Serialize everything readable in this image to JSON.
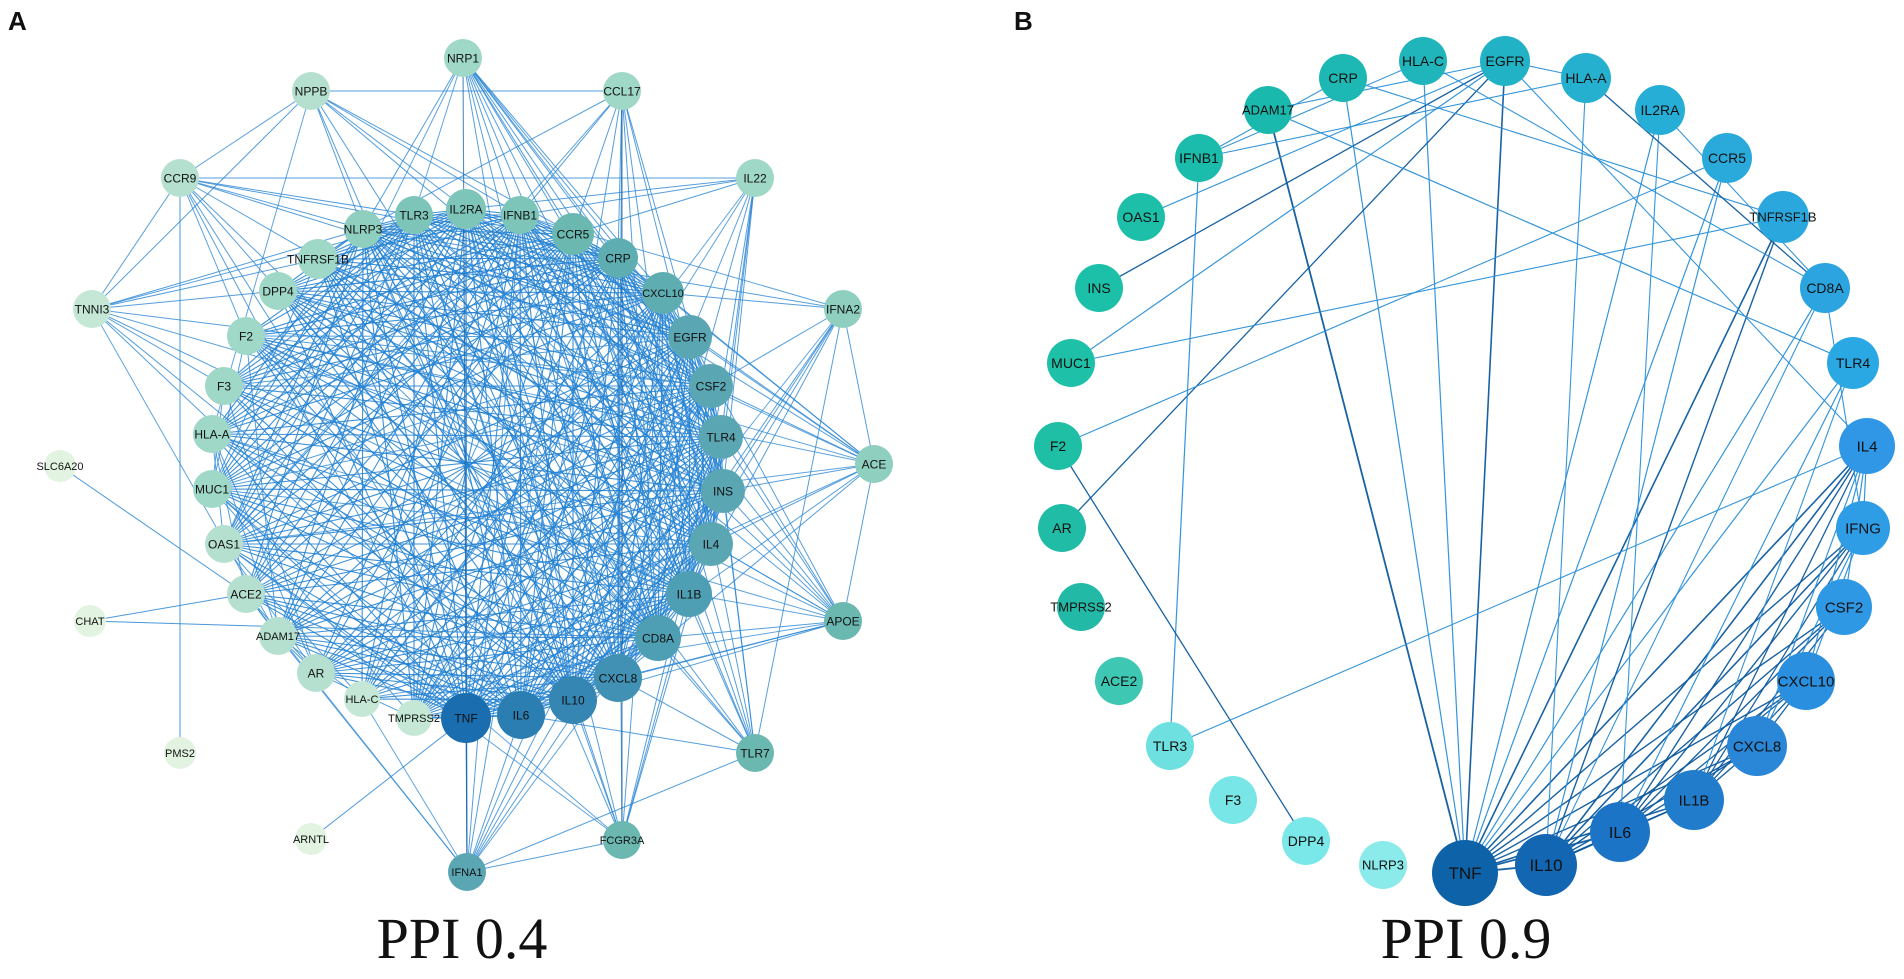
{
  "panels": [
    {
      "letter": "A",
      "caption": "PPI 0.4",
      "nodes": [
        {
          "label": "NRP1",
          "color": "#9fd8c7"
        },
        {
          "label": "NPPB",
          "color": "#b5e0cf"
        },
        {
          "label": "CCL17",
          "color": "#9fd8c7"
        },
        {
          "label": "CCR9",
          "color": "#b5e0cf"
        },
        {
          "label": "IL22",
          "color": "#9fd8c7"
        },
        {
          "label": "TLR3",
          "color": "#7cc5b8"
        },
        {
          "label": "IL2RA",
          "color": "#7cc5b8"
        },
        {
          "label": "IFNB1",
          "color": "#7cc5b8"
        },
        {
          "label": "NLRP3",
          "color": "#8fcfbf"
        },
        {
          "label": "CCR5",
          "color": "#6ab8b0"
        },
        {
          "label": "TNFRSF1B",
          "color": "#9fd8c7"
        },
        {
          "label": "CRP",
          "color": "#5eadb0"
        },
        {
          "label": "DPP4",
          "color": "#9fd8c7"
        },
        {
          "label": "CXCL10",
          "color": "#5eadb0"
        },
        {
          "label": "TNNI3",
          "color": "#c5e8d6"
        },
        {
          "label": "IFNA2",
          "color": "#8fcfbf"
        },
        {
          "label": "F2",
          "color": "#9fd8c7"
        },
        {
          "label": "EGFR",
          "color": "#5aa6b3"
        },
        {
          "label": "F3",
          "color": "#9fd8c7"
        },
        {
          "label": "CSF2",
          "color": "#5aa6b3"
        },
        {
          "label": "HLA-A",
          "color": "#9fd8c7"
        },
        {
          "label": "TLR4",
          "color": "#5aa6b3"
        },
        {
          "label": "ACE",
          "color": "#8fcfbf"
        },
        {
          "label": "SLC6A20",
          "color": "#e2f3e1"
        },
        {
          "label": "MUC1",
          "color": "#9fd8c7"
        },
        {
          "label": "INS",
          "color": "#5aa6b3"
        },
        {
          "label": "OAS1",
          "color": "#b5e0cf"
        },
        {
          "label": "IL4",
          "color": "#5aa6b3"
        },
        {
          "label": "ACE2",
          "color": "#b5e0cf"
        },
        {
          "label": "IL1B",
          "color": "#4f9fb4"
        },
        {
          "label": "CHAT",
          "color": "#e2f3e1"
        },
        {
          "label": "APOE",
          "color": "#6ab8b0"
        },
        {
          "label": "ADAM17",
          "color": "#b5e0cf"
        },
        {
          "label": "CD8A",
          "color": "#4f9fb4"
        },
        {
          "label": "AR",
          "color": "#b5e0cf"
        },
        {
          "label": "CXCL8",
          "color": "#4191b4"
        },
        {
          "label": "HLA-C",
          "color": "#c5e8d6"
        },
        {
          "label": "TMPRSS2",
          "color": "#c5e8d6"
        },
        {
          "label": "TNF",
          "color": "#1a6eb0"
        },
        {
          "label": "IL6",
          "color": "#2a7eb2"
        },
        {
          "label": "IL10",
          "color": "#3586b3"
        },
        {
          "label": "TLR7",
          "color": "#6ab8b0"
        },
        {
          "label": "PMS2",
          "color": "#e2f3e1"
        },
        {
          "label": "ARNTL",
          "color": "#e2f3e1"
        },
        {
          "label": "IFNA1",
          "color": "#5aa6b3"
        },
        {
          "label": "FCGR3A",
          "color": "#6ab8b0"
        }
      ]
    },
    {
      "letter": "B",
      "caption": "PPI 0.9",
      "nodes": [
        {
          "label": "EGFR",
          "color": "#22b2c6"
        },
        {
          "label": "HLA-C",
          "color": "#1fb5bb"
        },
        {
          "label": "HLA-A",
          "color": "#25b0cf"
        },
        {
          "label": "CRP",
          "color": "#1db8b3"
        },
        {
          "label": "ADAM17",
          "color": "#1ab9ad"
        },
        {
          "label": "IL2RA",
          "color": "#27aed6"
        },
        {
          "label": "IFNB1",
          "color": "#1bbcab"
        },
        {
          "label": "CCR5",
          "color": "#2aaadb"
        },
        {
          "label": "OAS1",
          "color": "#1dbfa9"
        },
        {
          "label": "TNFRSF1B",
          "color": "#2aa7dd"
        },
        {
          "label": "INS",
          "color": "#1cbfa8"
        },
        {
          "label": "CD8A",
          "color": "#2ca4e0"
        },
        {
          "label": "MUC1",
          "color": "#1ec1a8"
        },
        {
          "label": "TLR4",
          "color": "#2aa8e3"
        },
        {
          "label": "F2",
          "color": "#1fbfa6"
        },
        {
          "label": "IL4",
          "color": "#2f97e6"
        },
        {
          "label": "AR",
          "color": "#20bca6"
        },
        {
          "label": "IFNG",
          "color": "#2f9ce6"
        },
        {
          "label": "TMPRSS2",
          "color": "#22b9a7"
        },
        {
          "label": "CSF2",
          "color": "#2e98e5"
        },
        {
          "label": "ACE2",
          "color": "#3ec7b2"
        },
        {
          "label": "CXCL10",
          "color": "#2b8fdf"
        },
        {
          "label": "TLR3",
          "color": "#6ee0e0"
        },
        {
          "label": "CXCL8",
          "color": "#2a86d7"
        },
        {
          "label": "F3",
          "color": "#78e6e6"
        },
        {
          "label": "IL1B",
          "color": "#217ccc"
        },
        {
          "label": "DPP4",
          "color": "#7ae8e8"
        },
        {
          "label": "IL6",
          "color": "#1c74c7"
        },
        {
          "label": "NLRP3",
          "color": "#8beaea"
        },
        {
          "label": "IL10",
          "color": "#1266b2"
        },
        {
          "label": "TNF",
          "color": "#0e62a8"
        }
      ]
    }
  ]
}
